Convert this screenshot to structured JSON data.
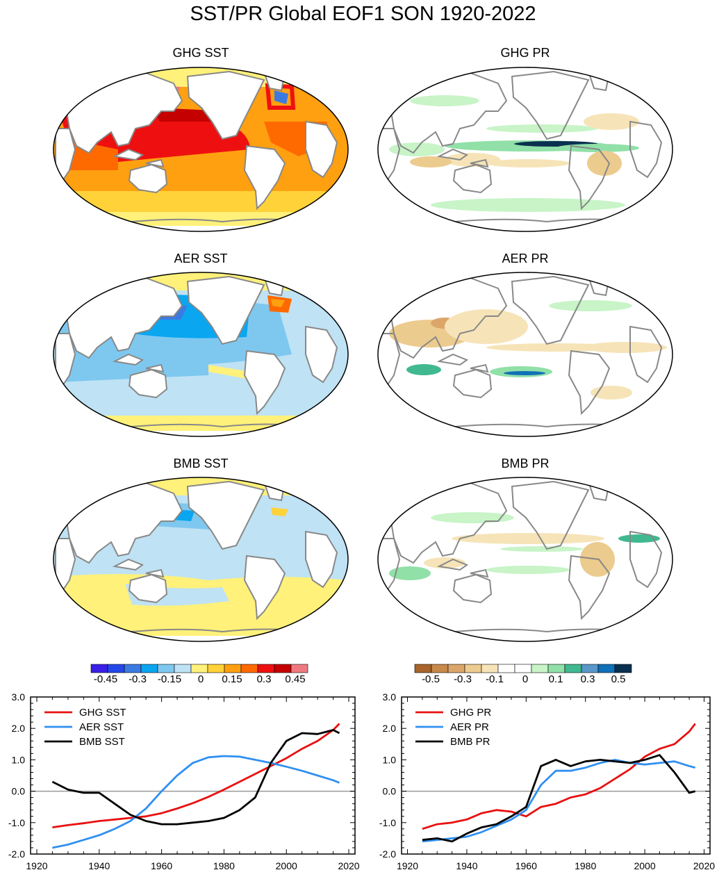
{
  "title": "SST/PR Global EOF1 SON 1920-2022",
  "maps": [
    {
      "label": "GHG SST"
    },
    {
      "label": "GHG PR"
    },
    {
      "label": "AER SST"
    },
    {
      "label": "AER PR"
    },
    {
      "label": "BMB SST"
    },
    {
      "label": "BMB PR"
    }
  ],
  "colors": {
    "sst_scale": [
      "#3a1fe6",
      "#2448e8",
      "#3d7ae0",
      "#0aa6f0",
      "#7ec8f0",
      "#bfe2f4",
      "#fff17a",
      "#ffd23a",
      "#ffa010",
      "#ff6a00",
      "#ee1010",
      "#c40000",
      "#ee7a80"
    ],
    "pr_scale": [
      "#a8642a",
      "#c8894a",
      "#dca66a",
      "#eccb8e",
      "#f6e4b8",
      "#ffffff",
      "#ffffff",
      "#c8f4c8",
      "#90e0a8",
      "#40b890",
      "#5a98c8",
      "#1070b8",
      "#0a3050"
    ],
    "land": "#ffffff",
    "coast": "#888888",
    "zero_line": "#999999",
    "ghg": "#e81010",
    "aer": "#3090f0",
    "bmb": "#000000"
  },
  "colorbars": {
    "sst_labels": [
      "-0.45",
      "-0.3",
      "-0.15",
      "0",
      "0.15",
      "0.3",
      "0.45"
    ],
    "pr_labels": [
      "-0.5",
      "-0.3",
      "-0.1",
      "0",
      "0.1",
      "0.3",
      "0.5"
    ]
  },
  "chart_data": [
    {
      "type": "line",
      "title": "",
      "xlabel": "",
      "ylabel": "",
      "xlim": [
        1918,
        2022
      ],
      "ylim": [
        -2.0,
        3.0
      ],
      "xticks": [
        "1920",
        "1940",
        "1960",
        "1980",
        "2000",
        "2020"
      ],
      "yticks": [
        "-2.0",
        "-1.0",
        "0.0",
        "1.0",
        "2.0",
        "3.0"
      ],
      "legend": "top-left",
      "x": [
        1925,
        1930,
        1935,
        1940,
        1945,
        1950,
        1955,
        1960,
        1965,
        1970,
        1975,
        1980,
        1985,
        1990,
        1995,
        2000,
        2005,
        2010,
        2015,
        2017
      ],
      "series": [
        {
          "name": "GHG SST",
          "color": "#e81010",
          "values": [
            -1.15,
            -1.08,
            -1.02,
            -0.95,
            -0.9,
            -0.85,
            -0.8,
            -0.7,
            -0.55,
            -0.38,
            -0.18,
            0.05,
            0.3,
            0.55,
            0.8,
            1.05,
            1.35,
            1.6,
            1.95,
            2.15
          ]
        },
        {
          "name": "AER SST",
          "color": "#3090f0",
          "values": [
            -1.8,
            -1.7,
            -1.55,
            -1.4,
            -1.2,
            -0.95,
            -0.55,
            0.0,
            0.5,
            0.9,
            1.08,
            1.12,
            1.1,
            1.0,
            0.9,
            0.78,
            0.65,
            0.5,
            0.35,
            0.27
          ]
        },
        {
          "name": "BMB SST",
          "color": "#000000",
          "values": [
            0.3,
            0.05,
            -0.05,
            -0.05,
            -0.4,
            -0.75,
            -0.95,
            -1.05,
            -1.05,
            -1.0,
            -0.95,
            -0.85,
            -0.6,
            -0.2,
            0.9,
            1.6,
            1.85,
            1.82,
            1.95,
            1.85
          ]
        }
      ]
    },
    {
      "type": "line",
      "title": "",
      "xlabel": "",
      "ylabel": "",
      "xlim": [
        1918,
        2022
      ],
      "ylim": [
        -2.0,
        3.0
      ],
      "xticks": [
        "1920",
        "1940",
        "1960",
        "1980",
        "2000",
        "2020"
      ],
      "yticks": [
        "-2.0",
        "-1.0",
        "0.0",
        "1.0",
        "2.0",
        "3.0"
      ],
      "legend": "top-left",
      "x": [
        1925,
        1930,
        1935,
        1940,
        1945,
        1950,
        1955,
        1960,
        1965,
        1970,
        1975,
        1980,
        1985,
        1990,
        1995,
        2000,
        2005,
        2010,
        2015,
        2017
      ],
      "series": [
        {
          "name": "GHG PR",
          "color": "#e81010",
          "values": [
            -1.2,
            -1.05,
            -1.0,
            -0.9,
            -0.7,
            -0.6,
            -0.65,
            -0.8,
            -0.5,
            -0.4,
            -0.2,
            -0.1,
            0.1,
            0.4,
            0.7,
            1.1,
            1.35,
            1.5,
            1.9,
            2.15
          ]
        },
        {
          "name": "AER PR",
          "color": "#3090f0",
          "values": [
            -1.6,
            -1.55,
            -1.5,
            -1.45,
            -1.3,
            -1.1,
            -0.9,
            -0.6,
            0.2,
            0.65,
            0.65,
            0.75,
            0.9,
            1.0,
            0.9,
            0.85,
            0.9,
            0.95,
            0.8,
            0.75
          ]
        },
        {
          "name": "BMB PR",
          "color": "#000000",
          "values": [
            -1.55,
            -1.5,
            -1.6,
            -1.35,
            -1.15,
            -1.05,
            -0.8,
            -0.5,
            0.8,
            1.0,
            0.8,
            0.95,
            1.0,
            0.95,
            0.9,
            1.0,
            1.15,
            0.6,
            -0.05,
            0.0
          ]
        }
      ]
    }
  ]
}
